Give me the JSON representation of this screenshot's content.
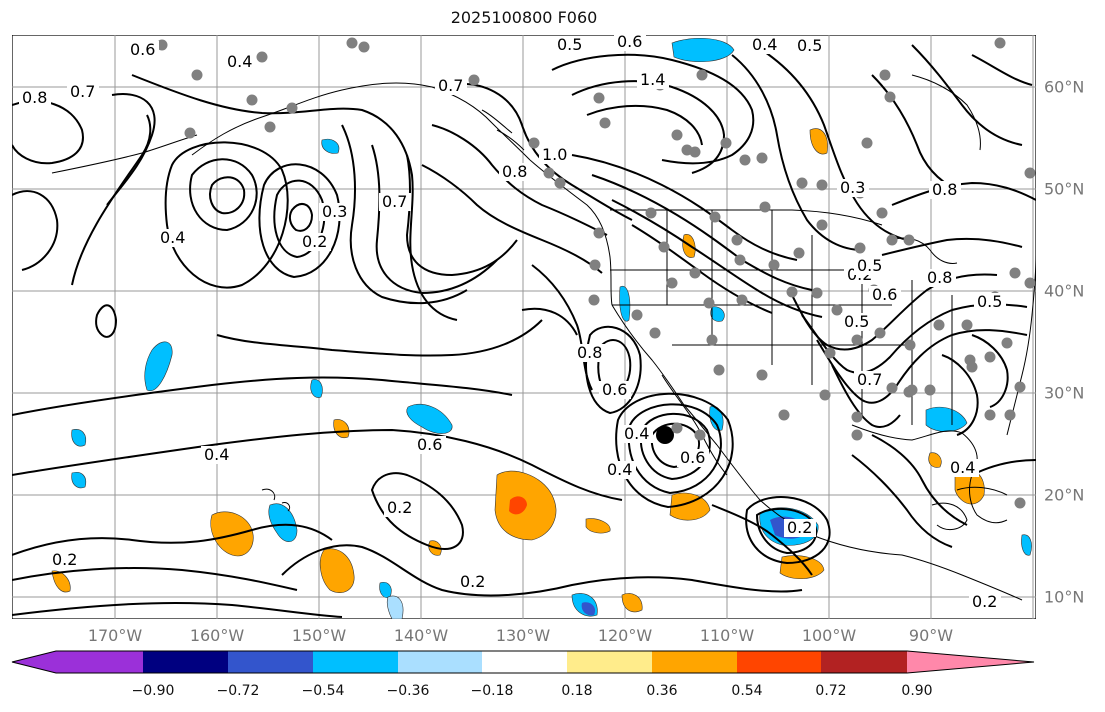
{
  "title": "2025100800 F060",
  "lon_labels": [
    "170°W",
    "160°W",
    "150°W",
    "140°W",
    "130°W",
    "120°W",
    "110°W",
    "100°W",
    "90°W"
  ],
  "lat_labels": [
    "60°N",
    "50°N",
    "40°N",
    "30°N",
    "20°N",
    "10°N"
  ],
  "colorbar": {
    "ticks": [
      "−0.90",
      "−0.72",
      "−0.54",
      "−0.36",
      "−0.18",
      "0.18",
      "0.36",
      "0.54",
      "0.72",
      "0.90"
    ],
    "colors": [
      "#9b30d9",
      "#000080",
      "#3355cc",
      "#00bfff",
      "#aadfff",
      "#ffffff",
      "#ffec8b",
      "#ffa500",
      "#ff4500",
      "#b22222",
      "#ff88aa"
    ]
  },
  "contour_labels": [
    "0.6",
    "0.4",
    "0.7",
    "0.8",
    "0.5",
    "0.6",
    "0.5",
    "0.4",
    "0.7",
    "1.4",
    "1.0",
    "0.8",
    "0.7",
    "0.4",
    "0.2",
    "0.3",
    "0.8",
    "0.6",
    "0.4",
    "0.6",
    "0.4",
    "0.3",
    "0.2",
    "0.5",
    "0.6",
    "0.8",
    "0.5",
    "0.8",
    "0.5",
    "0.7",
    "0.6",
    "0.4",
    "0.2",
    "0.2",
    "0.2",
    "0.2",
    "0.4",
    "0.2"
  ],
  "colors": {
    "land": "#000000",
    "grid": "#999999",
    "contour": "#000000",
    "station": "#808080"
  }
}
